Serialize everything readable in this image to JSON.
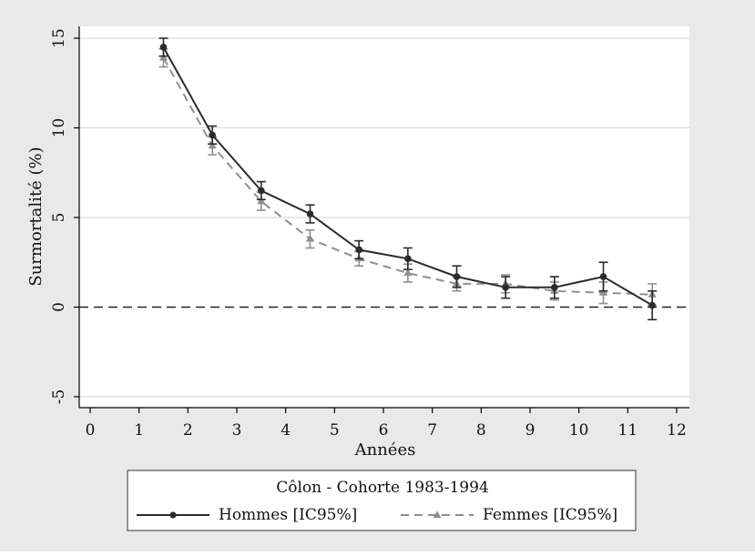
{
  "chart_data": {
    "type": "line",
    "ylabel": "Surmortalité (%)",
    "xlabel": "Années",
    "xlim": [
      0,
      12
    ],
    "ylim": [
      -5,
      15
    ],
    "xticks": [
      0,
      1,
      2,
      3,
      4,
      5,
      6,
      7,
      8,
      9,
      10,
      11,
      12
    ],
    "yticks": [
      -5,
      0,
      5,
      10,
      15
    ],
    "xtick_labels": [
      "0",
      "1",
      "2",
      "3",
      "4",
      "5",
      "6",
      "7",
      "8",
      "9",
      "10",
      "11",
      "12"
    ],
    "ytick_labels": [
      "-5",
      "0",
      "5",
      "10",
      "15"
    ],
    "reference_line": {
      "y": 0,
      "style": "dashed"
    },
    "grid": "horizontal",
    "legend": {
      "title": "Côlon - Cohorte 1983-1994",
      "placement": "bottom"
    },
    "series": [
      {
        "name": "Hommes [IC95%]",
        "color": "#2b2b2b",
        "marker": "circle",
        "line": "solid",
        "x": [
          1.5,
          2.5,
          3.5,
          4.5,
          5.5,
          6.5,
          7.5,
          8.5,
          9.5,
          10.5,
          11.5
        ],
        "y": [
          14.5,
          9.6,
          6.5,
          5.2,
          3.2,
          2.7,
          1.7,
          1.1,
          1.1,
          1.7,
          0.1
        ],
        "ci_low": [
          14.0,
          9.1,
          6.0,
          4.7,
          2.7,
          2.1,
          1.1,
          0.5,
          0.5,
          0.9,
          -0.7
        ],
        "ci_high": [
          15.0,
          10.1,
          7.0,
          5.7,
          3.7,
          3.3,
          2.3,
          1.7,
          1.7,
          2.5,
          0.9
        ]
      },
      {
        "name": "Femmes [IC95%]",
        "color": "#8f8f8f",
        "marker": "triangle",
        "line": "dashed",
        "x": [
          1.5,
          2.5,
          3.5,
          4.5,
          5.5,
          6.5,
          7.5,
          8.5,
          9.5,
          10.5,
          11.5
        ],
        "y": [
          13.9,
          9.0,
          5.9,
          3.8,
          2.7,
          1.9,
          1.3,
          1.3,
          0.9,
          0.8,
          0.7
        ],
        "ci_low": [
          13.4,
          8.5,
          5.4,
          3.3,
          2.3,
          1.4,
          0.9,
          0.8,
          0.4,
          0.2,
          0.1
        ],
        "ci_high": [
          14.4,
          9.5,
          6.4,
          4.3,
          3.1,
          2.4,
          1.7,
          1.8,
          1.4,
          1.4,
          1.3
        ]
      }
    ]
  }
}
